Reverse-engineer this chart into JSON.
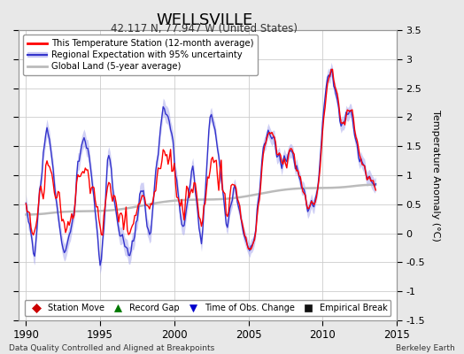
{
  "title": "WELLSVILLE",
  "subtitle": "42.117 N, 77.947 W (United States)",
  "ylabel": "Temperature Anomaly (°C)",
  "xlabel_left": "Data Quality Controlled and Aligned at Breakpoints",
  "xlabel_right": "Berkeley Earth",
  "ylim": [
    -1.5,
    3.5
  ],
  "xlim": [
    1989.5,
    2015.0
  ],
  "xticks": [
    1990,
    1995,
    2000,
    2005,
    2010,
    2015
  ],
  "yticks": [
    -1.5,
    -1,
    -0.5,
    0,
    0.5,
    1,
    1.5,
    2,
    2.5,
    3,
    3.5
  ],
  "legend_items": [
    {
      "label": "This Temperature Station (12-month average)",
      "color": "#ff0000",
      "lw": 1.5
    },
    {
      "label": "Regional Expectation with 95% uncertainty",
      "color": "#3333cc",
      "lw": 1.5
    },
    {
      "label": "Global Land (5-year average)",
      "color": "#aaaaaa",
      "lw": 2.0
    }
  ],
  "marker_legend": [
    {
      "marker": "D",
      "color": "#cc0000",
      "label": "Station Move"
    },
    {
      "marker": "^",
      "color": "#007700",
      "label": "Record Gap"
    },
    {
      "marker": "v",
      "color": "#0000cc",
      "label": "Time of Obs. Change"
    },
    {
      "marker": "s",
      "color": "#111111",
      "label": "Empirical Break"
    }
  ],
  "bg_color": "#e8e8e8",
  "plot_bg_color": "#ffffff",
  "grid_color": "#cccccc",
  "uncertainty_color": "#aaaaee",
  "global_land_color": "#bbbbbb"
}
